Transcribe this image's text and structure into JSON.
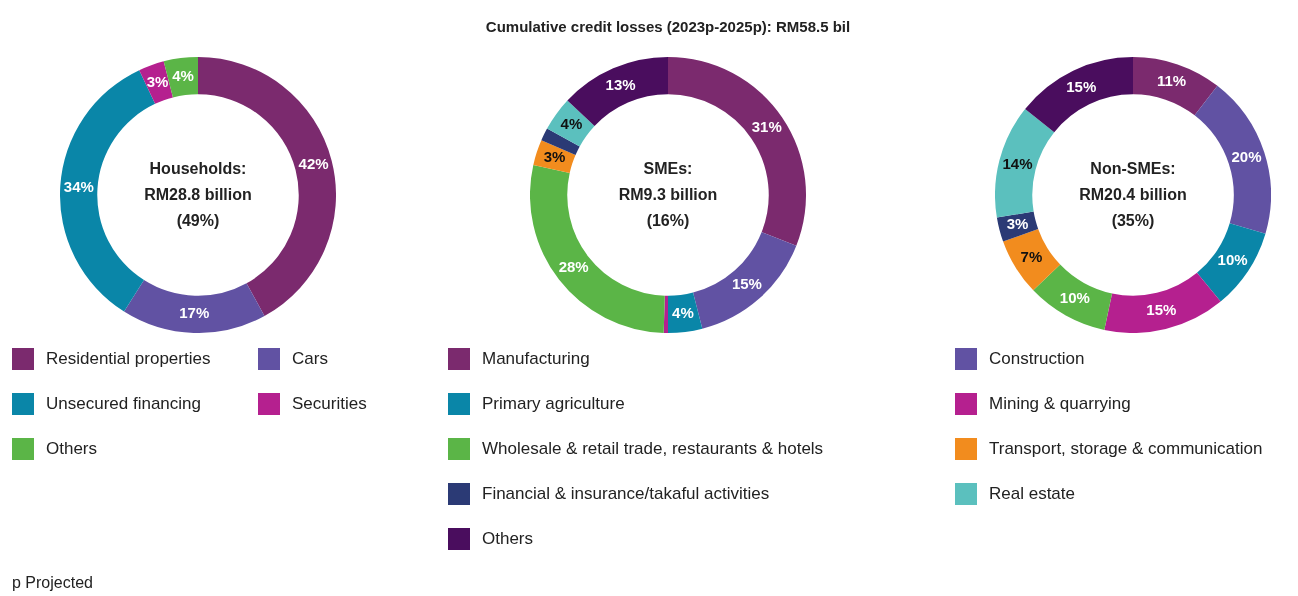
{
  "chart_data": [
    {
      "type": "donut",
      "categories": [
        "Residential properties",
        "Cars",
        "Unsecured financing",
        "Securities",
        "Others"
      ],
      "values": [
        42,
        17,
        34,
        3,
        4
      ],
      "colors": [
        "#7b2a6e",
        "#6152a3",
        "#0a86a8",
        "#b5208f",
        "#5bb547"
      ],
      "value_labels": [
        "42%",
        "17%",
        "34%",
        "3%",
        "4%"
      ],
      "legend": "bottom",
      "annotations": [
        "Households:\nRM28.8 billion\n(49%)",
        "p Projected"
      ]
    },
    {
      "type": "donut",
      "title": "Cumulative credit losses (2023p-2025p): RM58.5 bil",
      "categories": [
        "Manufacturing",
        "Construction",
        "Primary agriculture",
        "Mining & quarrying",
        "Wholesale & retail trade, restaurants & hotels",
        "Transport, storage & communication",
        "Financial & insurance/takaful activities",
        "Real estate",
        "Others"
      ],
      "values": [
        31,
        15,
        4,
        0.5,
        28,
        3,
        1.5,
        4,
        13
      ],
      "colors": [
        "#7b2a6e",
        "#6152a3",
        "#0a86a8",
        "#b5208f",
        "#5bb547",
        "#f28c1e",
        "#2b3a75",
        "#5bc0be",
        "#4a0d5e"
      ],
      "value_labels": [
        "31%",
        "15%",
        "4%",
        null,
        "28%",
        "3%",
        null,
        "4%",
        "13%"
      ],
      "legend": "bottom",
      "annotations": [
        "SMEs:\nRM9.3 billion\n(16%)"
      ]
    },
    {
      "type": "donut",
      "categories": [
        null,
        null,
        null,
        null,
        null,
        null,
        null,
        null,
        null
      ],
      "values": [
        11,
        20,
        10,
        15,
        10,
        7,
        3,
        14,
        15
      ],
      "colors": [
        "#7b2a6e",
        "#6152a3",
        "#0a86a8",
        "#b5208f",
        "#5bb547",
        "#f28c1e",
        "#2b3a75",
        "#5bc0be",
        "#4a0d5e"
      ],
      "value_labels": [
        "11%",
        "20%",
        "10%",
        "15%",
        "10%",
        "7%",
        "3%",
        "14%",
        "15%"
      ],
      "annotations": [
        "Non-SMEs:\nRM20.4 billion\n(35%)"
      ]
    }
  ]
}
